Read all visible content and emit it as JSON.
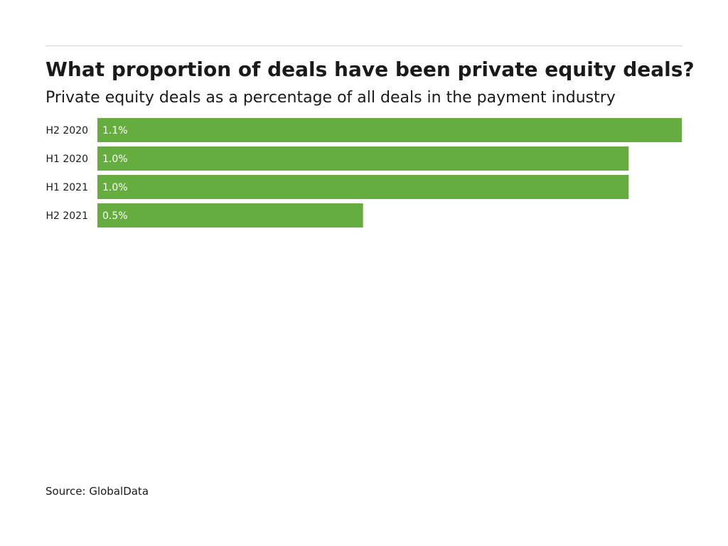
{
  "title": "What proportion of deals have been private equity deals?",
  "subtitle": "Private equity deals as a percentage of all deals in the payment industry",
  "source": "Source: GlobalData",
  "colors": {
    "bar": "#66ad3f",
    "bar_label": "#ffffff",
    "category_label": "#1a1a1a",
    "rule": "#d6d6d6"
  },
  "chart_data": {
    "type": "bar",
    "orientation": "horizontal",
    "categories": [
      "H2 2020",
      "H1 2020",
      "H1 2021",
      "H2 2021"
    ],
    "values": [
      1.1,
      1.0,
      1.0,
      0.5
    ],
    "value_labels": [
      "1.1%",
      "1.0%",
      "1.0%",
      "0.5%"
    ],
    "unit": "%",
    "title": "What proportion of deals have been private equity deals?",
    "subtitle": "Private equity deals as a percentage of all deals in the payment industry",
    "xlabel": "",
    "ylabel": "",
    "xlim": [
      0,
      1.1
    ],
    "grid": false,
    "legend": "none"
  }
}
